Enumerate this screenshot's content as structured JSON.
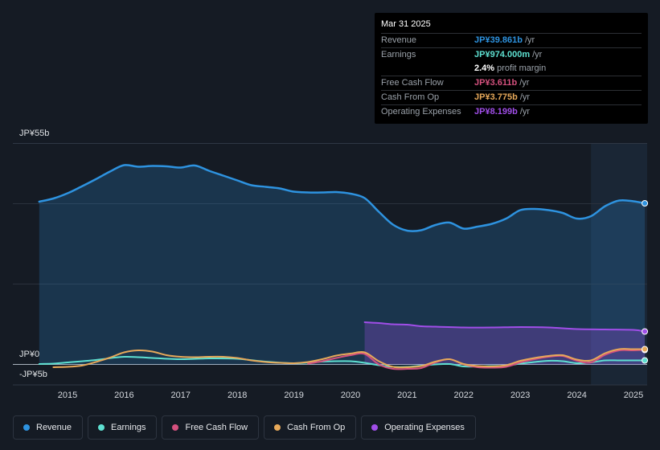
{
  "tooltip": {
    "date": "Mar 31 2025",
    "rows": [
      {
        "label": "Revenue",
        "value": "JP¥39.861b",
        "unit": "/yr",
        "color": "#2e93e0"
      },
      {
        "label": "Earnings",
        "value": "JP¥974.000m",
        "unit": "/yr",
        "color": "#5ee0d1"
      },
      {
        "label": "",
        "value": "2.4%",
        "unit": "profit margin",
        "color": "#ffffff"
      },
      {
        "label": "Free Cash Flow",
        "value": "JP¥3.611b",
        "unit": "/yr",
        "color": "#d4517e"
      },
      {
        "label": "Cash From Op",
        "value": "JP¥3.775b",
        "unit": "/yr",
        "color": "#e7a95a"
      },
      {
        "label": "Operating Expenses",
        "value": "JP¥8.199b",
        "unit": "/yr",
        "color": "#a04ee8"
      }
    ]
  },
  "legend": [
    {
      "label": "Revenue",
      "color": "#2e93e0"
    },
    {
      "label": "Earnings",
      "color": "#5ee0d1"
    },
    {
      "label": "Free Cash Flow",
      "color": "#d4517e"
    },
    {
      "label": "Cash From Op",
      "color": "#e7a95a"
    },
    {
      "label": "Operating Expenses",
      "color": "#a04ee8"
    }
  ],
  "chart_data": {
    "type": "area",
    "title": "",
    "xlabel": "",
    "ylabel": "",
    "y_tick_labels": [
      "JP¥55b",
      "JP¥0",
      "-JP¥5b"
    ],
    "ylim": [
      -5,
      55
    ],
    "xlim": [
      2014.5,
      2025.25
    ],
    "x_ticks": [
      2015,
      2016,
      2017,
      2018,
      2019,
      2020,
      2021,
      2022,
      2023,
      2024,
      2025
    ],
    "x_tick_labels": [
      "2015",
      "2016",
      "2017",
      "2018",
      "2019",
      "2020",
      "2021",
      "2022",
      "2023",
      "2024",
      "2025"
    ],
    "highlight_range": [
      2024.25,
      2025.25
    ],
    "series": [
      {
        "name": "Revenue",
        "color": "#2e93e0",
        "fill": true,
        "points": [
          [
            2014.5,
            40.5
          ],
          [
            2014.75,
            41.3
          ],
          [
            2015,
            42.6
          ],
          [
            2015.25,
            44.3
          ],
          [
            2015.5,
            46.1
          ],
          [
            2015.75,
            48.0
          ],
          [
            2016,
            49.6
          ],
          [
            2016.25,
            49.2
          ],
          [
            2016.5,
            49.4
          ],
          [
            2016.75,
            49.3
          ],
          [
            2017,
            49.0
          ],
          [
            2017.25,
            49.5
          ],
          [
            2017.5,
            48.2
          ],
          [
            2017.75,
            47.0
          ],
          [
            2018,
            45.8
          ],
          [
            2018.25,
            44.6
          ],
          [
            2018.5,
            44.2
          ],
          [
            2018.75,
            43.8
          ],
          [
            2019,
            43.0
          ],
          [
            2019.25,
            42.8
          ],
          [
            2019.5,
            42.8
          ],
          [
            2019.75,
            42.9
          ],
          [
            2020,
            42.5
          ],
          [
            2020.25,
            41.4
          ],
          [
            2020.5,
            38.0
          ],
          [
            2020.75,
            34.8
          ],
          [
            2021,
            33.3
          ],
          [
            2021.25,
            33.4
          ],
          [
            2021.5,
            34.7
          ],
          [
            2021.75,
            35.3
          ],
          [
            2022,
            33.8
          ],
          [
            2022.25,
            34.3
          ],
          [
            2022.5,
            35.0
          ],
          [
            2022.75,
            36.3
          ],
          [
            2023,
            38.4
          ],
          [
            2023.25,
            38.7
          ],
          [
            2023.5,
            38.4
          ],
          [
            2023.75,
            37.7
          ],
          [
            2024,
            36.3
          ],
          [
            2024.25,
            36.9
          ],
          [
            2024.5,
            39.4
          ],
          [
            2024.75,
            40.8
          ],
          [
            2025,
            40.6
          ],
          [
            2025.2,
            40.1
          ]
        ]
      },
      {
        "name": "Operating Expenses",
        "color": "#a04ee8",
        "fill": true,
        "points": [
          [
            2020.25,
            10.5
          ],
          [
            2020.5,
            10.3
          ],
          [
            2020.75,
            10.0
          ],
          [
            2021,
            9.9
          ],
          [
            2021.25,
            9.5
          ],
          [
            2021.5,
            9.4
          ],
          [
            2022,
            9.2
          ],
          [
            2022.5,
            9.2
          ],
          [
            2023,
            9.3
          ],
          [
            2023.5,
            9.2
          ],
          [
            2024,
            8.8
          ],
          [
            2024.5,
            8.7
          ],
          [
            2025,
            8.6
          ],
          [
            2025.2,
            8.2
          ]
        ]
      },
      {
        "name": "Earnings",
        "color": "#5ee0d1",
        "fill": false,
        "points": [
          [
            2014.5,
            0.1
          ],
          [
            2014.75,
            0.2
          ],
          [
            2015,
            0.5
          ],
          [
            2015.5,
            1.1
          ],
          [
            2016,
            1.9
          ],
          [
            2016.5,
            1.6
          ],
          [
            2017,
            1.3
          ],
          [
            2017.5,
            1.5
          ],
          [
            2018,
            1.4
          ],
          [
            2018.5,
            0.7
          ],
          [
            2019,
            0.3
          ],
          [
            2019.5,
            0.7
          ],
          [
            2020,
            0.8
          ],
          [
            2020.25,
            0.4
          ],
          [
            2020.5,
            -0.2
          ],
          [
            2020.75,
            -0.6
          ],
          [
            2021,
            -0.6
          ],
          [
            2021.25,
            -0.3
          ],
          [
            2021.5,
            0.0
          ],
          [
            2021.75,
            0.1
          ],
          [
            2022,
            -0.5
          ],
          [
            2022.25,
            -0.5
          ],
          [
            2022.5,
            -0.4
          ],
          [
            2022.75,
            -0.3
          ],
          [
            2023,
            0.2
          ],
          [
            2023.25,
            0.6
          ],
          [
            2023.5,
            0.9
          ],
          [
            2023.75,
            0.8
          ],
          [
            2024,
            0.3
          ],
          [
            2024.25,
            0.5
          ],
          [
            2024.5,
            1.0
          ],
          [
            2024.75,
            1.0
          ],
          [
            2025,
            1.0
          ],
          [
            2025.2,
            1.0
          ]
        ]
      },
      {
        "name": "Free Cash Flow",
        "color": "#d4517e",
        "fill": false,
        "points": [
          [
            2019.25,
            0.2
          ],
          [
            2019.5,
            0.8
          ],
          [
            2019.75,
            1.6
          ],
          [
            2020,
            2.3
          ],
          [
            2020.25,
            2.6
          ],
          [
            2020.5,
            0.0
          ],
          [
            2020.75,
            -1.1
          ],
          [
            2021,
            -1.1
          ],
          [
            2021.25,
            -0.9
          ],
          [
            2021.5,
            0.5
          ],
          [
            2021.75,
            1.3
          ],
          [
            2022,
            0.0
          ],
          [
            2022.25,
            -0.7
          ],
          [
            2022.5,
            -0.8
          ],
          [
            2022.75,
            -0.6
          ],
          [
            2023,
            0.5
          ],
          [
            2023.25,
            1.3
          ],
          [
            2023.5,
            1.9
          ],
          [
            2023.75,
            2.1
          ],
          [
            2024,
            0.9
          ],
          [
            2024.25,
            0.5
          ],
          [
            2024.5,
            2.4
          ],
          [
            2024.75,
            3.5
          ],
          [
            2025,
            3.5
          ],
          [
            2025.2,
            3.6
          ]
        ]
      },
      {
        "name": "Cash From Op",
        "color": "#e7a95a",
        "fill": false,
        "points": [
          [
            2014.75,
            -0.7
          ],
          [
            2015,
            -0.6
          ],
          [
            2015.25,
            -0.3
          ],
          [
            2015.5,
            0.6
          ],
          [
            2015.75,
            1.7
          ],
          [
            2016,
            3.0
          ],
          [
            2016.25,
            3.5
          ],
          [
            2016.5,
            3.2
          ],
          [
            2016.75,
            2.3
          ],
          [
            2017,
            1.9
          ],
          [
            2017.25,
            1.8
          ],
          [
            2017.5,
            1.9
          ],
          [
            2017.75,
            1.9
          ],
          [
            2018,
            1.6
          ],
          [
            2018.25,
            1.0
          ],
          [
            2018.5,
            0.6
          ],
          [
            2018.75,
            0.4
          ],
          [
            2019,
            0.3
          ],
          [
            2019.25,
            0.6
          ],
          [
            2019.5,
            1.3
          ],
          [
            2019.75,
            2.2
          ],
          [
            2020,
            2.7
          ],
          [
            2020.25,
            3.0
          ],
          [
            2020.5,
            0.8
          ],
          [
            2020.75,
            -0.6
          ],
          [
            2021,
            -0.7
          ],
          [
            2021.25,
            -0.4
          ],
          [
            2021.5,
            0.7
          ],
          [
            2021.75,
            1.3
          ],
          [
            2022,
            0.1
          ],
          [
            2022.25,
            -0.4
          ],
          [
            2022.5,
            -0.5
          ],
          [
            2022.75,
            -0.2
          ],
          [
            2023,
            0.9
          ],
          [
            2023.25,
            1.6
          ],
          [
            2023.5,
            2.1
          ],
          [
            2023.75,
            2.3
          ],
          [
            2024,
            1.2
          ],
          [
            2024.25,
            1.0
          ],
          [
            2024.5,
            2.8
          ],
          [
            2024.75,
            3.8
          ],
          [
            2025,
            3.8
          ],
          [
            2025.2,
            3.8
          ]
        ]
      }
    ]
  }
}
